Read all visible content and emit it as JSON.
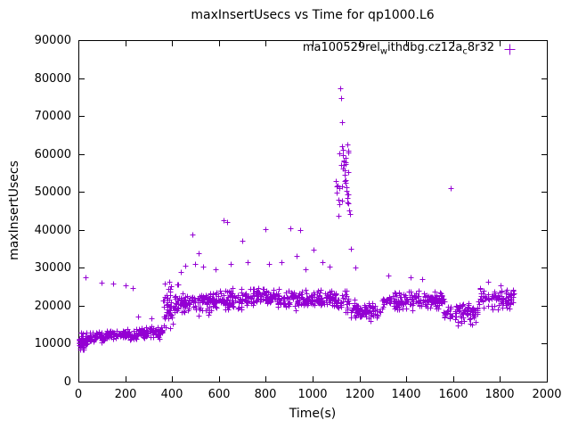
{
  "chart": {
    "title": "maxInsertUsecs vs Time for qp1000.L6",
    "xlabel": "Time(s)",
    "ylabel": "maxInsertUsecs",
    "accent_color": "#9400D3",
    "axis_color": "#000000",
    "legend": {
      "segments": [
        {
          "text": "ma100529rel",
          "sub": false
        },
        {
          "text": "w",
          "sub": true
        },
        {
          "text": "ithdbg.cz12a",
          "sub": false
        },
        {
          "text": "c",
          "sub": true
        },
        {
          "text": "8r32",
          "sub": false
        }
      ]
    }
  },
  "chart_data": {
    "type": "scatter",
    "marker": "plus",
    "color": "#9400D3",
    "title": "maxInsertUsecs vs Time for qp1000.L6",
    "xlabel": "Time(s)",
    "ylabel": "maxInsertUsecs",
    "legend_text": "ma100529relwithdbg.cz12ac8r32",
    "legend_position": "top-right-inside",
    "grid": false,
    "xlim": [
      0,
      2000
    ],
    "ylim": [
      0,
      90000
    ],
    "xticks": [
      0,
      200,
      400,
      600,
      800,
      1000,
      1200,
      1400,
      1600,
      1800,
      2000
    ],
    "yticks": [
      0,
      10000,
      20000,
      30000,
      40000,
      50000,
      60000,
      70000,
      80000,
      90000
    ],
    "seed": 42,
    "clusters": [
      {
        "x0": 2,
        "x1": 25,
        "n": 45,
        "mean": 10300,
        "spread": 2600
      },
      {
        "x0": 25,
        "x1": 120,
        "n": 70,
        "mean": 11600,
        "spread": 1500
      },
      {
        "x0": 120,
        "x1": 250,
        "n": 90,
        "mean": 12300,
        "spread": 1300
      },
      {
        "x0": 250,
        "x1": 360,
        "n": 80,
        "mean": 12900,
        "spread": 1300
      },
      {
        "x0": 360,
        "x1": 430,
        "n": 70,
        "mean": 20500,
        "spread": 5200
      },
      {
        "x0": 430,
        "x1": 560,
        "n": 90,
        "mean": 20800,
        "spread": 2800
      },
      {
        "x0": 560,
        "x1": 700,
        "n": 100,
        "mean": 21500,
        "spread": 2600
      },
      {
        "x0": 700,
        "x1": 900,
        "n": 140,
        "mean": 22300,
        "spread": 2300
      },
      {
        "x0": 900,
        "x1": 1100,
        "n": 140,
        "mean": 21800,
        "spread": 2400
      },
      {
        "x0": 1100,
        "x1": 1155,
        "n": 24,
        "mean": 54000,
        "spread": 9000
      },
      {
        "x0": 1100,
        "x1": 1160,
        "n": 30,
        "mean": 21000,
        "spread": 2500
      },
      {
        "x0": 1160,
        "x1": 1290,
        "n": 80,
        "mean": 18600,
        "spread": 2200
      },
      {
        "x0": 1290,
        "x1": 1560,
        "n": 170,
        "mean": 21400,
        "spread": 2300
      },
      {
        "x0": 1560,
        "x1": 1705,
        "n": 90,
        "mean": 18200,
        "spread": 2300
      },
      {
        "x0": 1705,
        "x1": 1860,
        "n": 95,
        "mean": 22000,
        "spread": 2600
      }
    ],
    "outliers": [
      [
        30,
        27400
      ],
      [
        100,
        26100
      ],
      [
        148,
        25800
      ],
      [
        200,
        25400
      ],
      [
        232,
        24700
      ],
      [
        255,
        17100
      ],
      [
        312,
        16600
      ],
      [
        352,
        14400
      ],
      [
        438,
        29000
      ],
      [
        455,
        30500
      ],
      [
        488,
        38800
      ],
      [
        498,
        31000
      ],
      [
        512,
        33800
      ],
      [
        532,
        30400
      ],
      [
        585,
        29500
      ],
      [
        618,
        42600
      ],
      [
        634,
        42100
      ],
      [
        652,
        31100
      ],
      [
        700,
        37200
      ],
      [
        722,
        31600
      ],
      [
        798,
        40100
      ],
      [
        812,
        31000
      ],
      [
        868,
        31500
      ],
      [
        905,
        40500
      ],
      [
        933,
        33100
      ],
      [
        948,
        39900
      ],
      [
        968,
        29500
      ],
      [
        1002,
        34700
      ],
      [
        1043,
        31400
      ],
      [
        1072,
        30400
      ],
      [
        1118,
        77200
      ],
      [
        1120,
        74800
      ],
      [
        1124,
        68300
      ],
      [
        1126,
        62000
      ],
      [
        1128,
        61000
      ],
      [
        1130,
        59800
      ],
      [
        1132,
        58300
      ],
      [
        1134,
        57000
      ],
      [
        1136,
        55800
      ],
      [
        1138,
        54400
      ],
      [
        1140,
        53200
      ],
      [
        1142,
        52300
      ],
      [
        1144,
        51300
      ],
      [
        1146,
        50400
      ],
      [
        1148,
        49400
      ],
      [
        1150,
        48300
      ],
      [
        1152,
        46900
      ],
      [
        1154,
        45200
      ],
      [
        1158,
        44100
      ],
      [
        1162,
        35000
      ],
      [
        1182,
        30100
      ],
      [
        1322,
        27900
      ],
      [
        1418,
        27400
      ],
      [
        1468,
        27000
      ],
      [
        1588,
        51100
      ],
      [
        1618,
        14800
      ],
      [
        1682,
        15100
      ],
      [
        1748,
        26400
      ],
      [
        1802,
        25400
      ]
    ]
  }
}
